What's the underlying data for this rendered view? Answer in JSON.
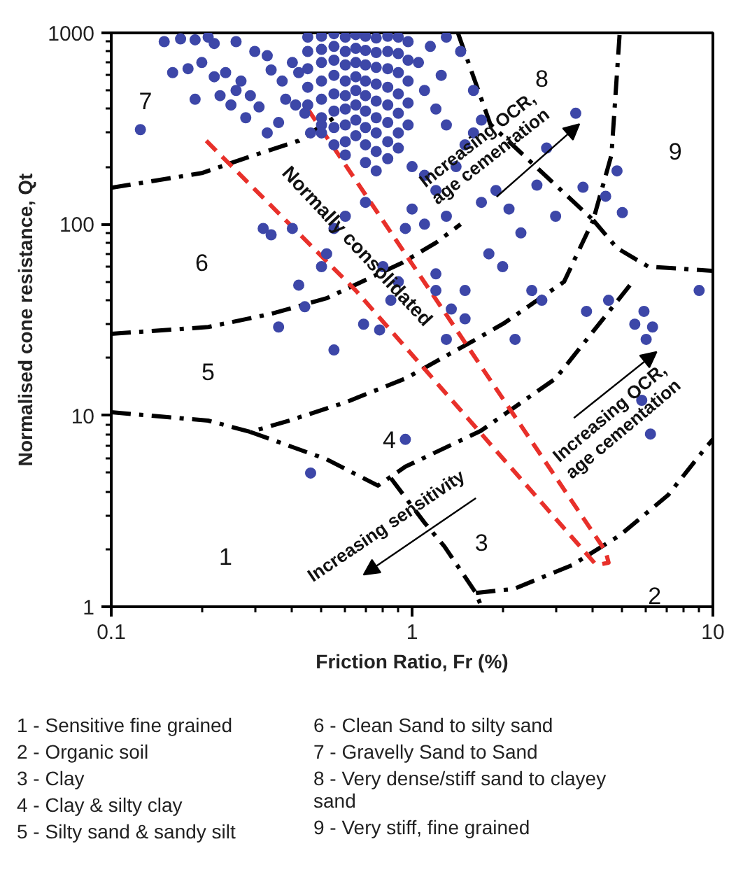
{
  "chart_data": {
    "type": "scatter",
    "xlabel": "Friction Ratio, Fr (%)",
    "ylabel": "Normalised cone resistance, Qt",
    "log": "xy",
    "xlim": [
      0.1,
      10
    ],
    "ylim": [
      1,
      1000
    ],
    "xticks": [
      0.1,
      1,
      10
    ],
    "yticks": [
      1,
      10,
      100,
      1000
    ],
    "grid": false,
    "series": [
      {
        "marker": "circle",
        "color": "#3d47a8",
        "x": [
          0.125,
          0.15,
          0.17,
          0.19,
          0.21,
          0.22,
          0.26,
          0.16,
          0.18,
          0.2,
          0.22,
          0.24,
          0.27,
          0.19,
          0.23,
          0.26,
          0.29,
          0.31,
          0.25,
          0.28,
          0.33,
          0.36,
          0.3,
          0.33,
          0.34,
          0.37,
          0.4,
          0.42,
          0.38,
          0.41,
          0.44,
          0.46,
          0.5,
          0.32,
          0.34,
          0.4,
          0.42,
          0.44,
          0.5,
          0.55,
          0.6,
          0.7,
          0.8,
          0.85,
          0.9,
          0.52,
          0.36,
          0.55,
          0.45,
          0.45,
          0.45,
          0.45,
          0.45,
          0.5,
          0.5,
          0.5,
          0.5,
          0.5,
          0.5,
          0.5,
          0.55,
          0.55,
          0.55,
          0.55,
          0.55,
          0.55,
          0.55,
          0.55,
          0.6,
          0.6,
          0.6,
          0.6,
          0.6,
          0.6,
          0.6,
          0.6,
          0.6,
          0.65,
          0.65,
          0.65,
          0.65,
          0.65,
          0.65,
          0.65,
          0.65,
          0.7,
          0.7,
          0.7,
          0.7,
          0.7,
          0.7,
          0.7,
          0.7,
          0.7,
          0.76,
          0.76,
          0.76,
          0.76,
          0.76,
          0.76,
          0.76,
          0.76,
          0.76,
          0.83,
          0.83,
          0.83,
          0.83,
          0.83,
          0.83,
          0.83,
          0.83,
          0.9,
          0.9,
          0.9,
          0.9,
          0.9,
          0.9,
          0.97,
          0.97,
          0.97,
          0.97,
          0.97,
          0.9,
          1.0,
          1.1,
          1.2,
          1.0,
          0.95,
          1.1,
          1.3,
          1.4,
          1.5,
          1.6,
          1.3,
          1.2,
          1.1,
          1.25,
          1.05,
          1.15,
          1.3,
          1.45,
          1.6,
          1.7,
          1.9,
          2.1,
          2.3,
          1.8,
          2.0,
          2.5,
          2.7,
          3.0,
          3.7,
          3.5,
          4.4,
          4.8,
          5.0,
          3.8,
          4.5,
          5.5,
          6.0,
          6.3,
          5.8,
          6.2,
          9.0,
          5.9,
          1.7,
          1.5,
          1.2,
          1.3,
          1.5,
          0.95,
          0.46,
          1.2,
          0.78,
          0.69,
          2.2,
          2.6,
          2.8,
          1.35
        ],
        "values": [
          312,
          900,
          930,
          920,
          950,
          880,
          900,
          620,
          650,
          700,
          590,
          620,
          560,
          450,
          470,
          500,
          470,
          410,
          420,
          360,
          300,
          340,
          800,
          760,
          640,
          560,
          700,
          620,
          450,
          420,
          380,
          300,
          330,
          95,
          88,
          95,
          48,
          37,
          60,
          95,
          110,
          130,
          60,
          40,
          50,
          70,
          29,
          22,
          950,
          800,
          650,
          520,
          420,
          960,
          820,
          700,
          560,
          450,
          360,
          300,
          990,
          850,
          720,
          600,
          480,
          390,
          320,
          260,
          950,
          800,
          680,
          560,
          470,
          400,
          330,
          270,
          230,
          980,
          830,
          700,
          590,
          500,
          420,
          350,
          290,
          960,
          810,
          680,
          560,
          470,
          390,
          320,
          260,
          210,
          940,
          790,
          660,
          540,
          440,
          360,
          300,
          240,
          190,
          960,
          800,
          650,
          520,
          420,
          340,
          270,
          220,
          950,
          780,
          620,
          480,
          380,
          300,
          900,
          720,
          560,
          430,
          330,
          250,
          200,
          180,
          150,
          120,
          95,
          100,
          110,
          200,
          260,
          300,
          330,
          400,
          500,
          600,
          700,
          850,
          950,
          800,
          500,
          350,
          150,
          120,
          90,
          70,
          60,
          45,
          40,
          110,
          156,
          380,
          140,
          190,
          115,
          35,
          40,
          30,
          25,
          29,
          12,
          8,
          45,
          35,
          130,
          45,
          55,
          25,
          32,
          7.5,
          5,
          45,
          28,
          30,
          25,
          160,
          250,
          36
        ]
      },
      {
        "type": "line",
        "color": "#000000",
        "line_style": "dashdot",
        "x": [
          0.1,
          0.2,
          0.3,
          0.42,
          0.55
        ],
        "values": [
          155,
          185,
          230,
          273,
          360
        ]
      },
      {
        "type": "line",
        "color": "#000000",
        "line_style": "dashdot",
        "x": [
          1.42,
          1.82,
          4.0,
          4.6,
          4.9
        ],
        "values": [
          1000,
          333,
          105,
          230,
          1000
        ]
      },
      {
        "type": "line",
        "color": "#000000",
        "line_style": "dashdot",
        "x": [
          4.0,
          4.8,
          6.1,
          10
        ],
        "values": [
          105,
          75,
          60,
          57
        ]
      },
      {
        "type": "line",
        "color": "#000000",
        "line_style": "dashdot",
        "x": [
          0.1,
          0.21,
          0.34,
          0.52,
          0.93,
          1.2,
          1.45
        ],
        "values": [
          26.7,
          29,
          34,
          41,
          63,
          80,
          100
        ]
      },
      {
        "type": "line",
        "color": "#000000",
        "line_style": "dashdot",
        "x": [
          0.1,
          0.21,
          0.29,
          0.39,
          0.6,
          0.95,
          1.63,
          2.03,
          3.2,
          4.0
        ],
        "values": [
          10.4,
          9.4,
          8.2,
          9.4,
          11.7,
          15.6,
          25,
          30.5,
          50,
          105
        ]
      },
      {
        "type": "line",
        "color": "#000000",
        "line_style": "dashdot",
        "x": [
          0.29,
          0.34,
          0.52,
          0.77,
          0.95,
          1.69,
          3.0,
          5.3
        ],
        "values": [
          8.2,
          7.5,
          5.9,
          4.3,
          5.4,
          8.3,
          15.6,
          48
        ]
      },
      {
        "type": "line",
        "color": "#000000",
        "line_style": "dashdot",
        "x": [
          0.85,
          1.1,
          1.28,
          1.45,
          1.63,
          1.7
        ],
        "values": [
          4.7,
          2.75,
          2.07,
          1.55,
          1.18,
          1
        ]
      },
      {
        "type": "line",
        "color": "#000000",
        "line_style": "dashdot",
        "x": [
          1.63,
          2.18,
          3.4,
          4.9,
          7.1,
          9.4,
          10
        ],
        "values": [
          1.18,
          1.24,
          1.65,
          2.36,
          3.84,
          6.7,
          7.5
        ]
      },
      {
        "type": "line",
        "color": "#e8302a",
        "line_style": "dashed",
        "x": [
          0.207,
          0.65,
          4.1
        ],
        "values": [
          273,
          45,
          1.65
        ]
      },
      {
        "type": "line",
        "color": "#e8302a",
        "line_style": "dashed",
        "x": [
          0.45,
          4.4,
          4.5,
          4.1
        ],
        "values": [
          400,
          1.95,
          1.7,
          1.65
        ]
      }
    ],
    "annotations": [
      "1",
      "2",
      "3",
      "4",
      "5",
      "6",
      "7",
      "8",
      "9",
      "Normally consolidated",
      "Increasing OCR,\nage cementation",
      "Increasing OCR,\nage cementation",
      "Increasing sensitivity",
      "1 - Sensitive fine grained",
      "2 - Organic soil",
      "3 - Clay",
      "4 - Clay & silty clay",
      "5 - Silty sand & sandy silt",
      "6 - Clean Sand to silty sand",
      "7 - Gravelly Sand to Sand",
      "8 - Very dense/stiff sand to clayey sand",
      "9 - Very stiff, fine grained"
    ]
  }
}
